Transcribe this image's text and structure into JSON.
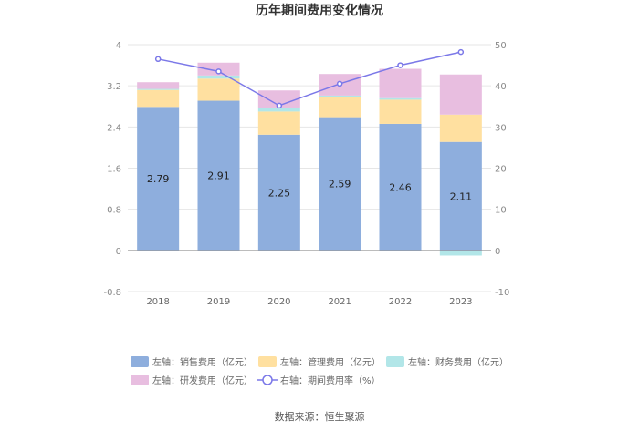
{
  "chart_data": {
    "type": "bar",
    "title": "历年期间费用变化情况",
    "categories": [
      "2018",
      "2019",
      "2020",
      "2021",
      "2022",
      "2023"
    ],
    "left_axis": {
      "ylim": [
        -0.8,
        4
      ],
      "ticks": [
        "4",
        "3.2",
        "2.4",
        "1.6",
        "0.8",
        "0",
        "-0.8"
      ],
      "tick_values": [
        4,
        3.2,
        2.4,
        1.6,
        0.8,
        0,
        -0.8
      ]
    },
    "right_axis": {
      "ylim": [
        -10,
        50
      ],
      "ticks": [
        "50",
        "40",
        "30",
        "20",
        "10",
        "0",
        "-10"
      ],
      "tick_values": [
        50,
        40,
        30,
        20,
        10,
        0,
        -10
      ]
    },
    "series": [
      {
        "name": "左轴：销售费用（亿元）",
        "axis": "left",
        "type": "bar",
        "color": "#8eaedd",
        "values": [
          2.79,
          2.91,
          2.25,
          2.59,
          2.46,
          2.11
        ],
        "labels": [
          "2.79",
          "2.91",
          "2.25",
          "2.59",
          "2.46",
          "2.11"
        ]
      },
      {
        "name": "左轴：管理费用（亿元）",
        "axis": "left",
        "type": "bar",
        "color": "#ffe0a0",
        "values": [
          0.33,
          0.43,
          0.45,
          0.39,
          0.47,
          0.53
        ]
      },
      {
        "name": "左轴：财务费用（亿元）",
        "axis": "left",
        "type": "bar",
        "color": "#b2e6e8",
        "values": [
          0.02,
          0.06,
          0.06,
          0.03,
          0.03,
          -0.1
        ]
      },
      {
        "name": "左轴：研发费用（亿元）",
        "axis": "left",
        "type": "bar",
        "color": "#e8bee0",
        "values": [
          0.13,
          0.25,
          0.35,
          0.42,
          0.57,
          0.78
        ]
      },
      {
        "name": "右轴：期间费用率（%）",
        "axis": "right",
        "type": "line",
        "color": "#7b78e8",
        "values": [
          46.5,
          43.5,
          35.2,
          40.5,
          45.0,
          48.2
        ]
      }
    ],
    "legend_position": "bottom",
    "grid": true
  },
  "source_text": "数据来源：恒生聚源"
}
